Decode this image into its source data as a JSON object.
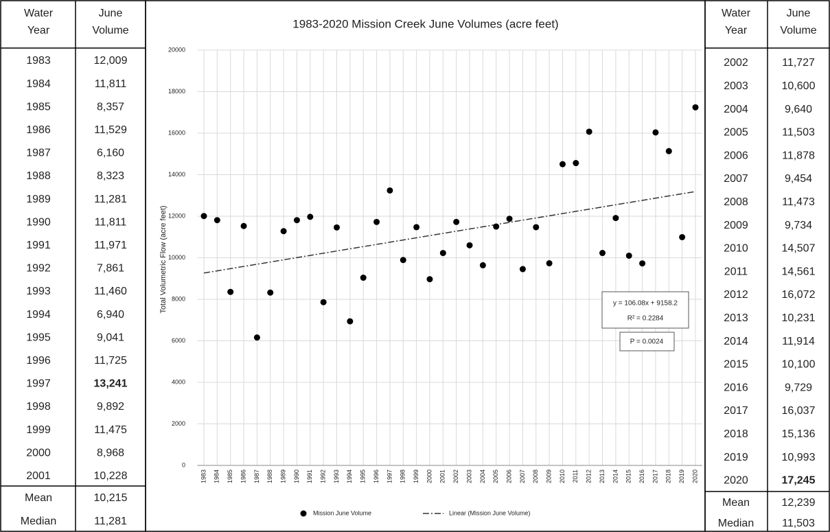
{
  "left_table": {
    "header": [
      "Water\nYear",
      "June\nVolume"
    ],
    "rows": [
      [
        "1983",
        "12,009"
      ],
      [
        "1984",
        "11,811"
      ],
      [
        "1985",
        "8,357"
      ],
      [
        "1986",
        "11,529"
      ],
      [
        "1987",
        "6,160"
      ],
      [
        "1988",
        "8,323"
      ],
      [
        "1989",
        "11,281"
      ],
      [
        "1990",
        "11,811"
      ],
      [
        "1991",
        "11,971"
      ],
      [
        "1992",
        "7,861"
      ],
      [
        "1993",
        "11,460"
      ],
      [
        "1994",
        "6,940"
      ],
      [
        "1995",
        "9,041"
      ],
      [
        "1996",
        "11,725"
      ],
      [
        "1997",
        "13,241"
      ],
      [
        "1998",
        "9,892"
      ],
      [
        "1999",
        "11,475"
      ],
      [
        "2000",
        "8,968"
      ],
      [
        "2001",
        "10,228"
      ]
    ],
    "bold_rows": [
      14
    ],
    "footer": [
      [
        "Mean",
        "10,215"
      ],
      [
        "Median",
        "11,281"
      ]
    ]
  },
  "right_table": {
    "header": [
      "Water\nYear",
      "June\nVolume"
    ],
    "rows": [
      [
        "2002",
        "11,727"
      ],
      [
        "2003",
        "10,600"
      ],
      [
        "2004",
        "9,640"
      ],
      [
        "2005",
        "11,503"
      ],
      [
        "2006",
        "11,878"
      ],
      [
        "2007",
        "9,454"
      ],
      [
        "2008",
        "11,473"
      ],
      [
        "2009",
        "9,734"
      ],
      [
        "2010",
        "14,507"
      ],
      [
        "2011",
        "14,561"
      ],
      [
        "2012",
        "16,072"
      ],
      [
        "2013",
        "10,231"
      ],
      [
        "2014",
        "11,914"
      ],
      [
        "2015",
        "10,100"
      ],
      [
        "2016",
        "9,729"
      ],
      [
        "2017",
        "16,037"
      ],
      [
        "2018",
        "15,136"
      ],
      [
        "2019",
        "10,993"
      ],
      [
        "2020",
        "17,245"
      ]
    ],
    "bold_rows": [
      18
    ],
    "footer": [
      [
        "Mean",
        "12,239"
      ],
      [
        "Median",
        "11,503"
      ]
    ]
  },
  "chart_data": {
    "type": "scatter",
    "title": "1983-2020 Mission Creek June Volumes (acre feet)",
    "y_label": "Total Volumetric Flow (acre feet)",
    "categories": [
      "1983",
      "1984",
      "1985",
      "1986",
      "1987",
      "1988",
      "1989",
      "1990",
      "1991",
      "1992",
      "1993",
      "1994",
      "1995",
      "1996",
      "1997",
      "1998",
      "1999",
      "2000",
      "2001",
      "2002",
      "2003",
      "2004",
      "2005",
      "2006",
      "2007",
      "2008",
      "2009",
      "2010",
      "2011",
      "2012",
      "2013",
      "2014",
      "2015",
      "2016",
      "2017",
      "2018",
      "2019",
      "2020"
    ],
    "series": [
      {
        "name": "Mission June Volume",
        "color": "#000000",
        "values": [
          12009,
          11811,
          8357,
          11529,
          6160,
          8323,
          11281,
          11811,
          11971,
          7861,
          11460,
          6940,
          9041,
          11725,
          13241,
          9892,
          11475,
          8968,
          10228,
          11727,
          10600,
          9640,
          11503,
          11878,
          9454,
          11473,
          9734,
          14507,
          14561,
          16072,
          10231,
          11914,
          10100,
          9729,
          16037,
          15136,
          10993,
          17245
        ]
      }
    ],
    "trendline": {
      "name": "Linear (Mission June Volume)",
      "slope": 106.08,
      "intercept": 9158.2
    },
    "annotations": [
      "y = 106.08x + 9158.2",
      "R² = 0.2284",
      "P = 0.0024"
    ],
    "ylim": [
      0,
      20000
    ],
    "yticks": [
      0,
      2000,
      4000,
      6000,
      8000,
      10000,
      12000,
      14000,
      16000,
      18000,
      20000
    ],
    "grid": true
  }
}
